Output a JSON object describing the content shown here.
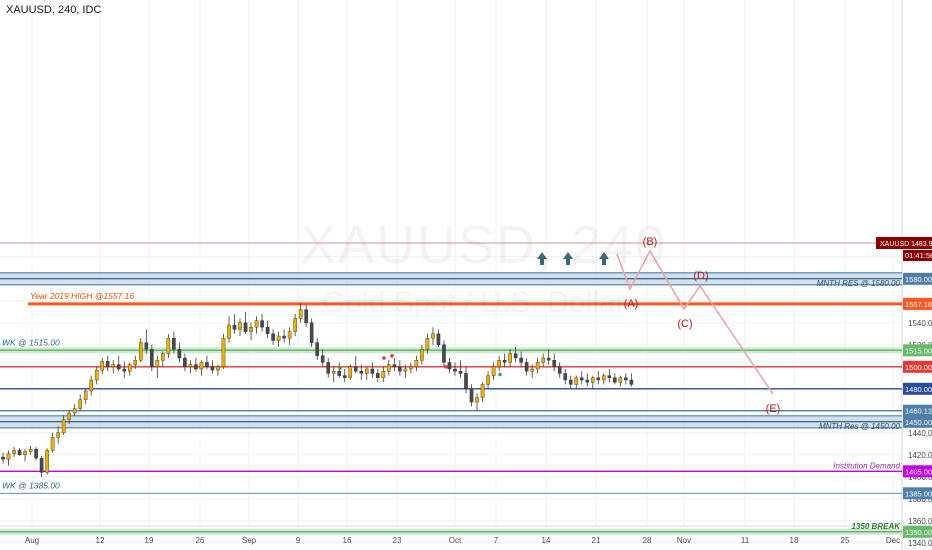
{
  "header": {
    "symbol": "XAUUSD, 240, IDC"
  },
  "watermark": {
    "ticker": "XAUUSD, 240",
    "name": "Gold Spot / U.S. Dollar"
  },
  "colors": {
    "candle_up": "#f0b000",
    "candle_down": "#4a4a4a",
    "level_red": "#e53935",
    "level_orange": "#ff5722",
    "level_green": "#66bb6a",
    "level_blue": "#2a4d9b",
    "level_purple": "#c100e6",
    "level_steel": "#4f7ea8",
    "projection": "#f0a0a0",
    "price_tag": "#8b0000",
    "arrow": "#3d6b73"
  },
  "chart_data": {
    "type": "candlestick",
    "symbol": "XAUUSD",
    "timeframe": "240",
    "source": "IDC",
    "ylim": [
      1335,
      1610
    ],
    "y_ticks": [
      1340,
      1360,
      1380,
      1400,
      1420,
      1440,
      1460,
      1480,
      1500,
      1520,
      1540,
      1560,
      1580,
      1600
    ],
    "x_tick_labels": [
      "Aug",
      "12",
      "19",
      "26",
      "Sep",
      "9",
      "16",
      "23",
      "Oct",
      "7",
      "14",
      "21",
      "28",
      "Nov",
      "11",
      "18",
      "25",
      "Dec"
    ],
    "current_price": {
      "label": "XAUUSD",
      "value": "1483.91",
      "countdown": "01:41:56"
    },
    "levels": [
      {
        "price": 1580,
        "price_label": "1580.00",
        "text": "MNTH RES @ 1580.00",
        "style": "zone",
        "color": "#4f7ea8"
      },
      {
        "price": 1557.16,
        "price_label": "1557.16",
        "text": "Year 2019 HIGH @1557.16",
        "style": "thick",
        "color": "#ff5722"
      },
      {
        "price": 1515,
        "price_label": "1515.00",
        "text": "WK @ 1515.00",
        "style": "green",
        "color": "#66bb6a"
      },
      {
        "price": 1500,
        "price_label": "1500.00",
        "text": "",
        "style": "line",
        "color": "#e53935"
      },
      {
        "price": 1480,
        "price_label": "1480.00",
        "text": "",
        "style": "line",
        "color": "#2a4d9b"
      },
      {
        "price": 1460.12,
        "price_label": "1460.12",
        "text": "",
        "style": "line",
        "color": "#4f7ea8"
      },
      {
        "price": 1450,
        "price_label": "1450.00",
        "text": "MNTH Res @ 1450.00",
        "style": "zone",
        "color": "#4f7ea8"
      },
      {
        "price": 1405,
        "price_label": "1405.00",
        "text": "Institution Demand",
        "style": "line",
        "color": "#c100e6"
      },
      {
        "price": 1385,
        "price_label": "1385.00",
        "text": "WK @ 1385.00",
        "style": "thin",
        "color": "#4f7ea8"
      },
      {
        "price": 1350,
        "price_label": "1350.00",
        "text": "1350 BREAK",
        "style": "green",
        "color": "#66bb6a"
      }
    ],
    "projection": [
      {
        "date_index": 141,
        "price": 1480,
        "label": ""
      },
      {
        "date_index": 145,
        "price": 1464,
        "label": "(A)"
      },
      {
        "date_index": 151,
        "price": 1480,
        "label": "(B)"
      },
      {
        "date_index": 157,
        "price": 1451,
        "label": "(C)"
      },
      {
        "date_index": 160,
        "price": 1463,
        "label": "(D)"
      },
      {
        "date_index": 174,
        "price": 1407,
        "label": "(E)"
      }
    ],
    "candles": [
      [
        1418,
        1422,
        1412,
        1416
      ],
      [
        1416,
        1424,
        1410,
        1421
      ],
      [
        1421,
        1427,
        1418,
        1424
      ],
      [
        1424,
        1426,
        1419,
        1420
      ],
      [
        1420,
        1425,
        1414,
        1423
      ],
      [
        1423,
        1428,
        1420,
        1425
      ],
      [
        1425,
        1427,
        1415,
        1417
      ],
      [
        1417,
        1419,
        1400,
        1404
      ],
      [
        1404,
        1426,
        1402,
        1424
      ],
      [
        1424,
        1440,
        1422,
        1436
      ],
      [
        1436,
        1446,
        1430,
        1440
      ],
      [
        1440,
        1456,
        1438,
        1452
      ],
      [
        1452,
        1460,
        1448,
        1458
      ],
      [
        1458,
        1466,
        1455,
        1462
      ],
      [
        1462,
        1475,
        1460,
        1470
      ],
      [
        1470,
        1480,
        1466,
        1478
      ],
      [
        1478,
        1492,
        1474,
        1488
      ],
      [
        1488,
        1500,
        1484,
        1497
      ],
      [
        1497,
        1508,
        1493,
        1505
      ],
      [
        1505,
        1510,
        1496,
        1500
      ],
      [
        1500,
        1506,
        1494,
        1502
      ],
      [
        1502,
        1510,
        1496,
        1498
      ],
      [
        1498,
        1505,
        1490,
        1496
      ],
      [
        1496,
        1504,
        1492,
        1502
      ],
      [
        1502,
        1510,
        1498,
        1506
      ],
      [
        1506,
        1526,
        1504,
        1522
      ],
      [
        1522,
        1534,
        1512,
        1516
      ],
      [
        1516,
        1520,
        1496,
        1500
      ],
      [
        1500,
        1510,
        1490,
        1506
      ],
      [
        1506,
        1514,
        1500,
        1512
      ],
      [
        1512,
        1530,
        1508,
        1526
      ],
      [
        1526,
        1532,
        1512,
        1516
      ],
      [
        1516,
        1522,
        1504,
        1508
      ],
      [
        1508,
        1512,
        1496,
        1500
      ],
      [
        1500,
        1506,
        1494,
        1502
      ],
      [
        1502,
        1508,
        1496,
        1498
      ],
      [
        1498,
        1506,
        1492,
        1504
      ],
      [
        1504,
        1510,
        1498,
        1500
      ],
      [
        1500,
        1506,
        1494,
        1497
      ],
      [
        1497,
        1502,
        1492,
        1500
      ],
      [
        1500,
        1530,
        1498,
        1526
      ],
      [
        1526,
        1546,
        1522,
        1538
      ],
      [
        1538,
        1548,
        1530,
        1534
      ],
      [
        1534,
        1544,
        1528,
        1540
      ],
      [
        1540,
        1550,
        1530,
        1532
      ],
      [
        1532,
        1540,
        1524,
        1536
      ],
      [
        1536,
        1546,
        1530,
        1542
      ],
      [
        1542,
        1548,
        1532,
        1536
      ],
      [
        1536,
        1542,
        1526,
        1530
      ],
      [
        1530,
        1534,
        1520,
        1524
      ],
      [
        1524,
        1532,
        1518,
        1528
      ],
      [
        1528,
        1534,
        1522,
        1526
      ],
      [
        1526,
        1536,
        1520,
        1532
      ],
      [
        1532,
        1548,
        1528,
        1544
      ],
      [
        1544,
        1558,
        1540,
        1552
      ],
      [
        1552,
        1556,
        1536,
        1540
      ],
      [
        1540,
        1544,
        1518,
        1522
      ],
      [
        1522,
        1526,
        1506,
        1510
      ],
      [
        1510,
        1516,
        1500,
        1504
      ],
      [
        1504,
        1508,
        1490,
        1494
      ],
      [
        1494,
        1500,
        1486,
        1496
      ],
      [
        1496,
        1504,
        1490,
        1492
      ],
      [
        1492,
        1498,
        1486,
        1490
      ],
      [
        1490,
        1502,
        1488,
        1500
      ],
      [
        1500,
        1510,
        1494,
        1496
      ],
      [
        1496,
        1502,
        1488,
        1494
      ],
      [
        1494,
        1500,
        1488,
        1498
      ],
      [
        1498,
        1504,
        1490,
        1494
      ],
      [
        1494,
        1498,
        1486,
        1490
      ],
      [
        1490,
        1500,
        1486,
        1496
      ],
      [
        1496,
        1506,
        1492,
        1502
      ],
      [
        1502,
        1508,
        1496,
        1500
      ],
      [
        1500,
        1506,
        1492,
        1496
      ],
      [
        1496,
        1502,
        1490,
        1498
      ],
      [
        1498,
        1504,
        1494,
        1500
      ],
      [
        1500,
        1510,
        1496,
        1506
      ],
      [
        1506,
        1520,
        1502,
        1516
      ],
      [
        1516,
        1530,
        1512,
        1526
      ],
      [
        1526,
        1536,
        1520,
        1530
      ],
      [
        1530,
        1534,
        1518,
        1520
      ],
      [
        1520,
        1524,
        1500,
        1504
      ],
      [
        1504,
        1508,
        1494,
        1498
      ],
      [
        1498,
        1504,
        1492,
        1496
      ],
      [
        1496,
        1506,
        1490,
        1494
      ],
      [
        1494,
        1500,
        1476,
        1480
      ],
      [
        1480,
        1484,
        1464,
        1468
      ],
      [
        1468,
        1476,
        1460,
        1472
      ],
      [
        1472,
        1486,
        1468,
        1484
      ],
      [
        1484,
        1496,
        1480,
        1492
      ],
      [
        1492,
        1504,
        1488,
        1500
      ],
      [
        1500,
        1510,
        1496,
        1506
      ],
      [
        1506,
        1512,
        1500,
        1504
      ],
      [
        1504,
        1516,
        1500,
        1512
      ],
      [
        1512,
        1518,
        1504,
        1508
      ],
      [
        1508,
        1514,
        1500,
        1504
      ],
      [
        1504,
        1508,
        1492,
        1496
      ],
      [
        1496,
        1502,
        1490,
        1498
      ],
      [
        1498,
        1508,
        1494,
        1504
      ],
      [
        1504,
        1512,
        1500,
        1508
      ],
      [
        1508,
        1516,
        1502,
        1506
      ],
      [
        1506,
        1512,
        1496,
        1500
      ],
      [
        1500,
        1504,
        1490,
        1494
      ],
      [
        1494,
        1498,
        1484,
        1488
      ],
      [
        1488,
        1492,
        1480,
        1484
      ],
      [
        1484,
        1492,
        1480,
        1490
      ],
      [
        1490,
        1496,
        1484,
        1488
      ],
      [
        1488,
        1494,
        1482,
        1486
      ],
      [
        1486,
        1492,
        1480,
        1490
      ],
      [
        1490,
        1496,
        1484,
        1488
      ],
      [
        1488,
        1494,
        1484,
        1492
      ],
      [
        1492,
        1498,
        1486,
        1490
      ],
      [
        1490,
        1494,
        1484,
        1486
      ],
      [
        1486,
        1492,
        1482,
        1490
      ],
      [
        1490,
        1494,
        1484,
        1488
      ],
      [
        1488,
        1494,
        1482,
        1484
      ]
    ]
  }
}
